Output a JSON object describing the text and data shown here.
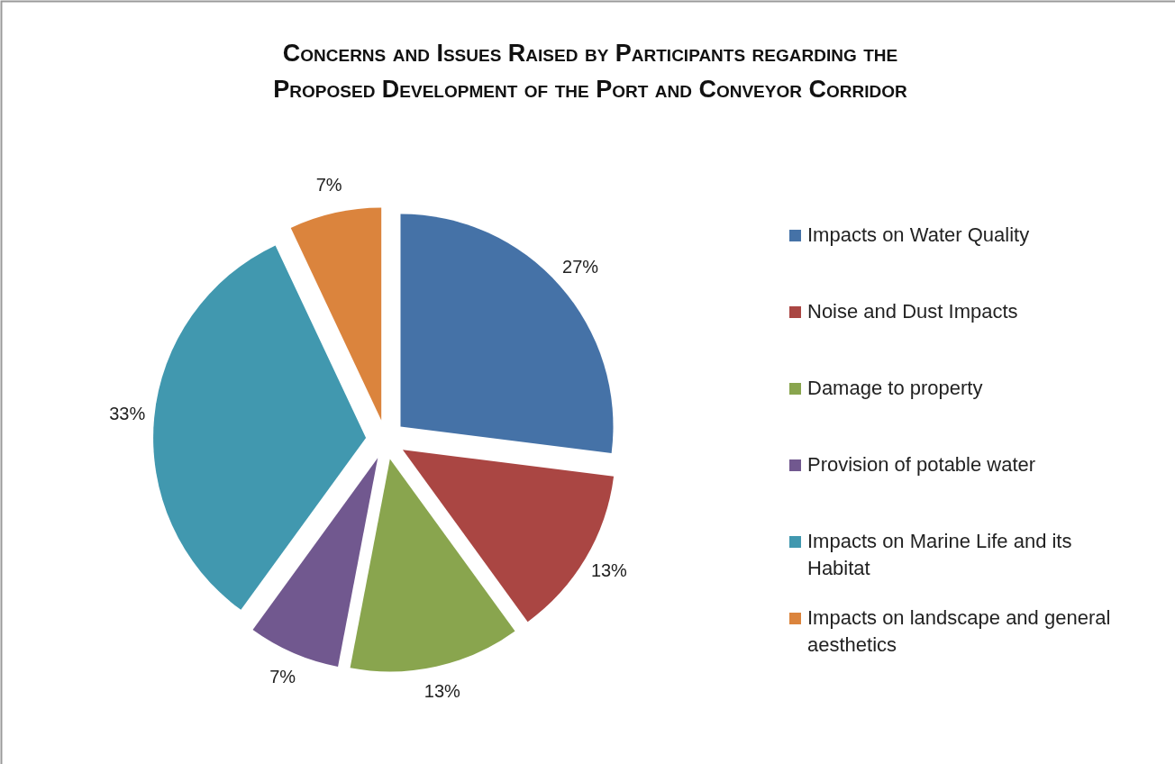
{
  "chart_data": {
    "type": "pie",
    "title": "Concerns and Issues Raised by Participants regarding the Proposed Development of the Port and Conveyor Corridor",
    "categories": [
      "Impacts on Water Quality",
      "Noise and Dust Impacts",
      "Damage to property",
      "Provision of potable water",
      "Impacts on Marine Life and its Habitat",
      "Impacts on landscape and general aesthetics"
    ],
    "values": [
      27,
      13,
      13,
      7,
      33,
      7
    ],
    "colors": [
      "#4572a7",
      "#aa4643",
      "#89a54e",
      "#71588f",
      "#4198af",
      "#db843d"
    ],
    "value_labels": [
      "27%",
      "13%",
      "13%",
      "7%",
      "33%",
      "7%"
    ],
    "legend": "right"
  }
}
